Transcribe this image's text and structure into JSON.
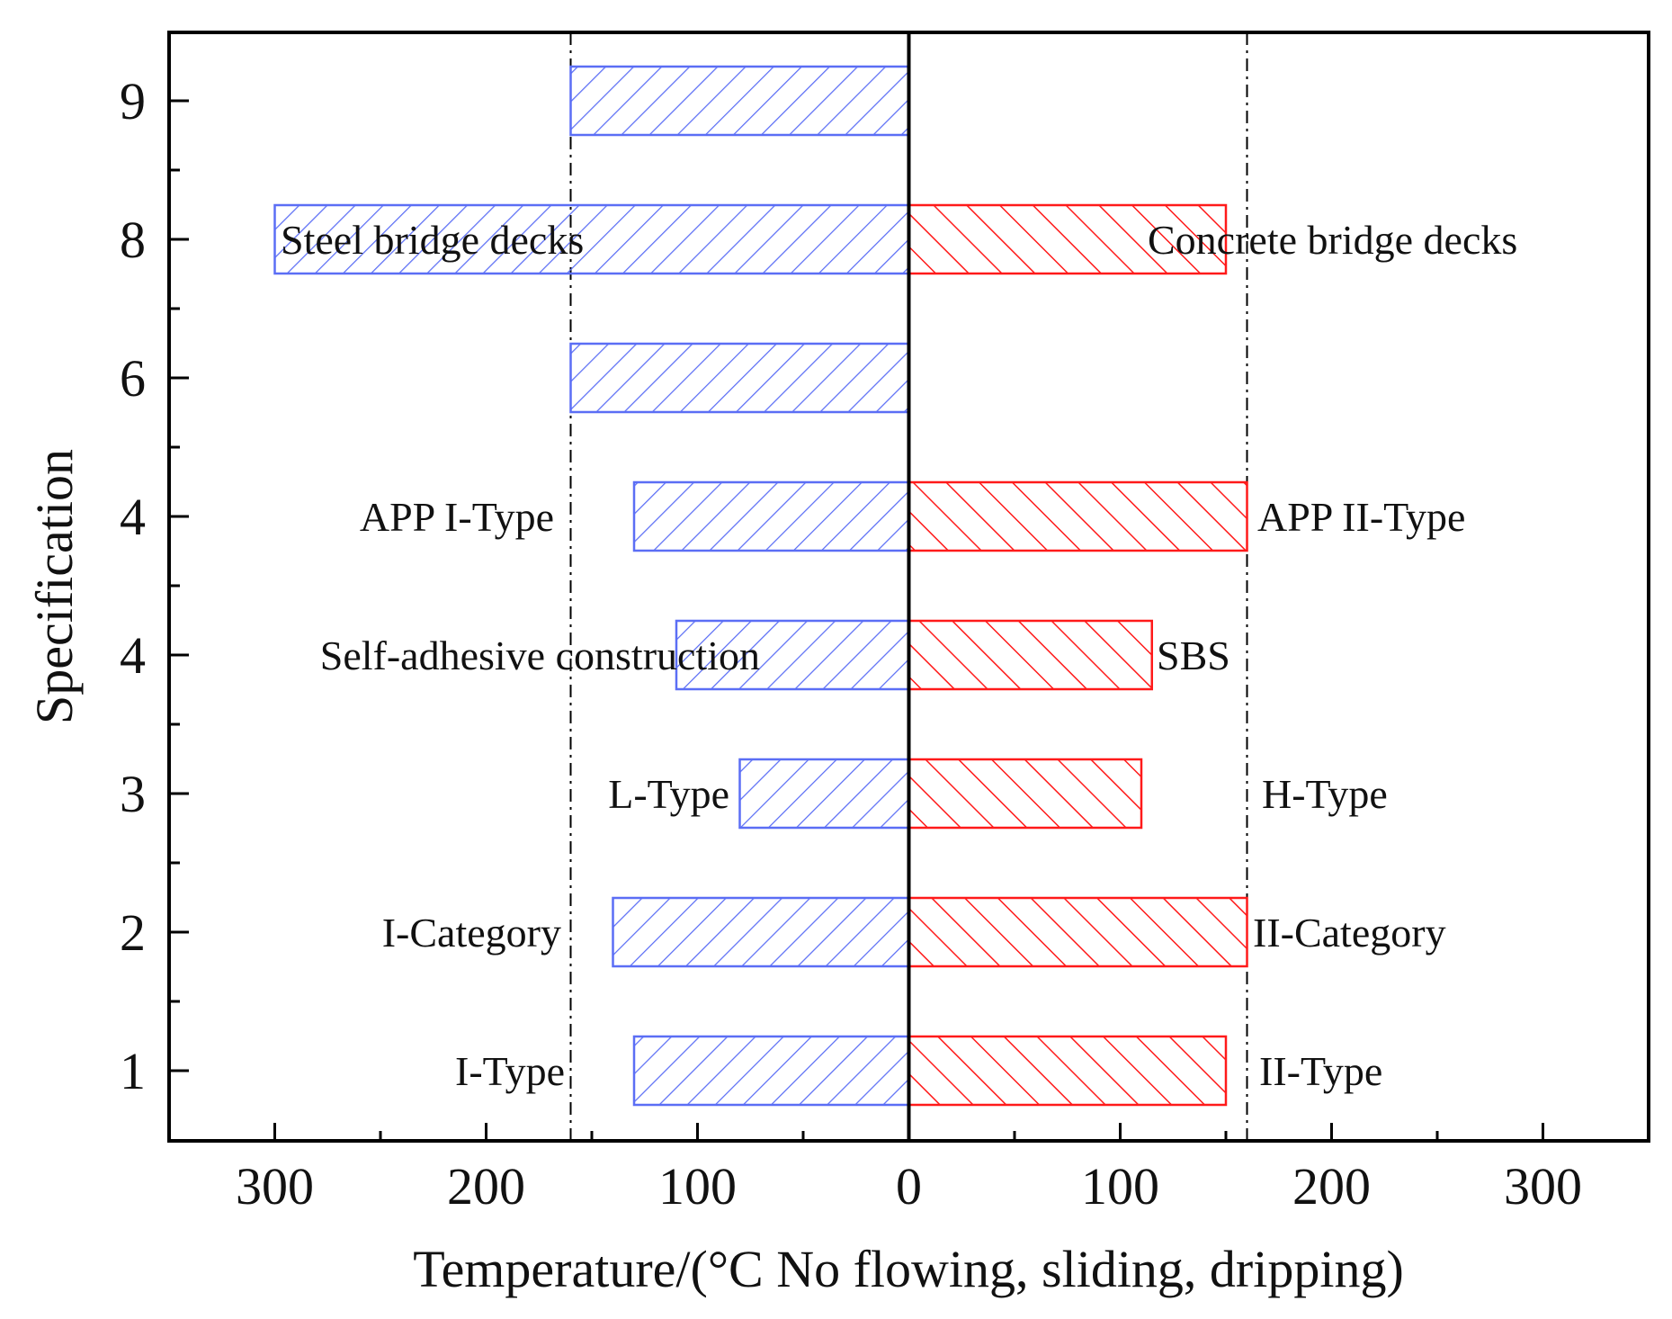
{
  "chart_data": {
    "type": "bar",
    "orientation": "horizontal",
    "title": "",
    "xlabel": "Temperature/(°C No flowing, sliding, dripping)",
    "ylabel": "Specification",
    "xlim": [
      -350,
      350
    ],
    "x_ticks": [
      {
        "value": -300,
        "label": "300"
      },
      {
        "value": -200,
        "label": "200"
      },
      {
        "value": -100,
        "label": "100"
      },
      {
        "value": 0,
        "label": "0"
      },
      {
        "value": 100,
        "label": "100"
      },
      {
        "value": 200,
        "label": "200"
      },
      {
        "value": 300,
        "label": "300"
      }
    ],
    "categories": [
      "1",
      "2",
      "3",
      "4",
      "4",
      "6",
      "8",
      "9"
    ],
    "reference_lines": [
      -160,
      160
    ],
    "series": [
      {
        "name": "left",
        "color": "#5b6ef5",
        "hatch": "forward",
        "values": [
          130,
          140,
          80,
          110,
          130,
          160,
          300,
          160
        ],
        "labels": [
          "I-Type",
          "I-Category",
          "L-Type",
          "Self-adhesive construction",
          "APP I-Type",
          "",
          "Steel bridge decks",
          ""
        ]
      },
      {
        "name": "right",
        "color": "#ff1a1a",
        "hatch": "backward",
        "values": [
          150,
          160,
          110,
          115,
          160,
          null,
          150,
          null
        ],
        "labels": [
          "II-Type",
          "II-Category",
          "H-Type",
          "SBS",
          "APP II-Type",
          "",
          "Concrete bridge decks",
          ""
        ]
      }
    ]
  }
}
